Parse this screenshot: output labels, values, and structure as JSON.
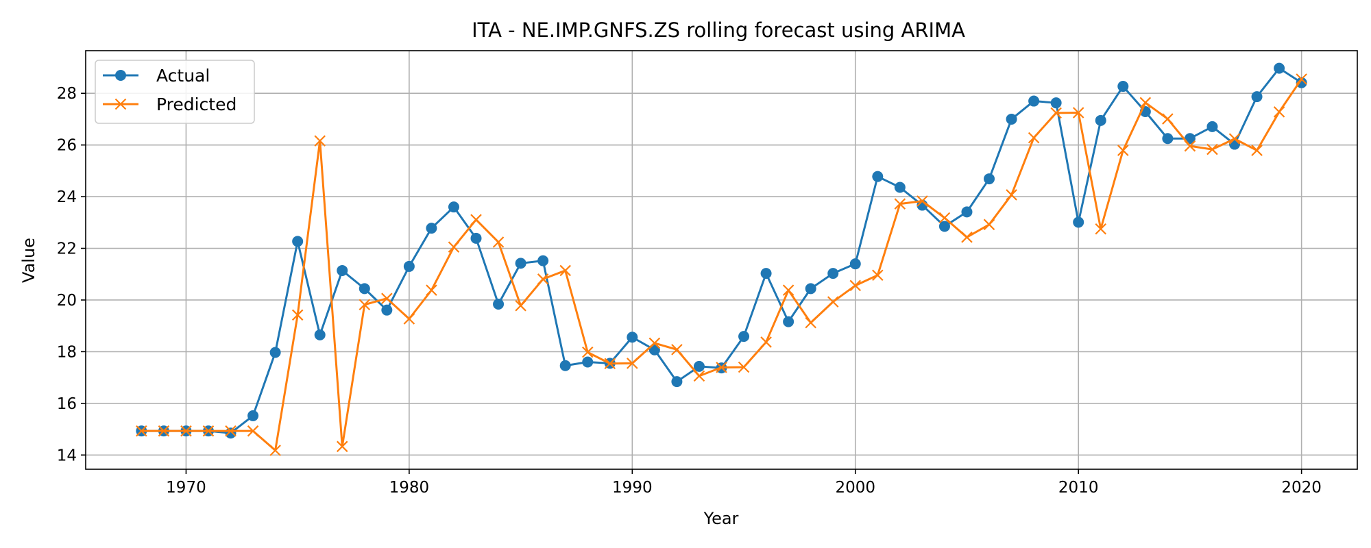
{
  "chart_data": {
    "type": "line",
    "title": "ITA - NE.IMP.GNFS.ZS rolling forecast using ARIMA",
    "xlabel": "Year",
    "ylabel": "Value",
    "xlim": [
      1965.5,
      2022.5
    ],
    "ylim": [
      13.45,
      29.65
    ],
    "x_ticks": [
      1970,
      1980,
      1990,
      2000,
      2010,
      2020
    ],
    "y_ticks": [
      14,
      16,
      18,
      20,
      22,
      24,
      26,
      28
    ],
    "grid": true,
    "legend_position": "top-left",
    "x": [
      1968,
      1969,
      1970,
      1971,
      1972,
      1973,
      1974,
      1975,
      1976,
      1977,
      1978,
      1979,
      1980,
      1981,
      1982,
      1983,
      1984,
      1985,
      1986,
      1987,
      1988,
      1989,
      1990,
      1991,
      1992,
      1993,
      1994,
      1995,
      1996,
      1997,
      1998,
      1999,
      2000,
      2001,
      2002,
      2003,
      2004,
      2005,
      2006,
      2007,
      2008,
      2009,
      2010,
      2011,
      2012,
      2013,
      2014,
      2015,
      2016,
      2017,
      2018,
      2019,
      2020
    ],
    "series": [
      {
        "name": "Actual",
        "color": "#1f77b4",
        "marker": "circle",
        "values": [
          14.93,
          14.93,
          14.93,
          14.93,
          14.85,
          15.52,
          17.97,
          22.27,
          18.65,
          21.14,
          20.44,
          19.61,
          21.3,
          22.78,
          23.6,
          22.39,
          19.84,
          21.42,
          21.52,
          17.46,
          17.6,
          17.55,
          18.56,
          18.07,
          16.84,
          17.43,
          17.37,
          18.59,
          21.03,
          19.16,
          20.44,
          21.03,
          21.4,
          24.78,
          24.36,
          23.67,
          22.85,
          23.41,
          24.69,
          27.0,
          27.7,
          27.63,
          23.01,
          26.95,
          28.27,
          27.29,
          26.25,
          26.25,
          26.71,
          26.03,
          27.87,
          28.97,
          28.41
        ]
      },
      {
        "name": "Predicted",
        "color": "#ff7f0e",
        "marker": "x",
        "values": [
          14.93,
          14.93,
          14.93,
          14.93,
          14.93,
          14.93,
          14.18,
          19.42,
          26.16,
          14.33,
          19.82,
          20.06,
          19.27,
          20.38,
          22.05,
          23.11,
          22.24,
          19.78,
          20.81,
          21.14,
          17.98,
          17.54,
          17.55,
          18.33,
          18.08,
          17.06,
          17.39,
          17.4,
          18.37,
          20.38,
          19.12,
          19.93,
          20.56,
          20.96,
          23.72,
          23.83,
          23.18,
          22.43,
          22.92,
          24.07,
          26.28,
          27.24,
          27.25,
          22.75,
          25.79,
          27.64,
          27.01,
          25.96,
          25.83,
          26.24,
          25.79,
          27.28,
          28.55
        ]
      }
    ]
  }
}
